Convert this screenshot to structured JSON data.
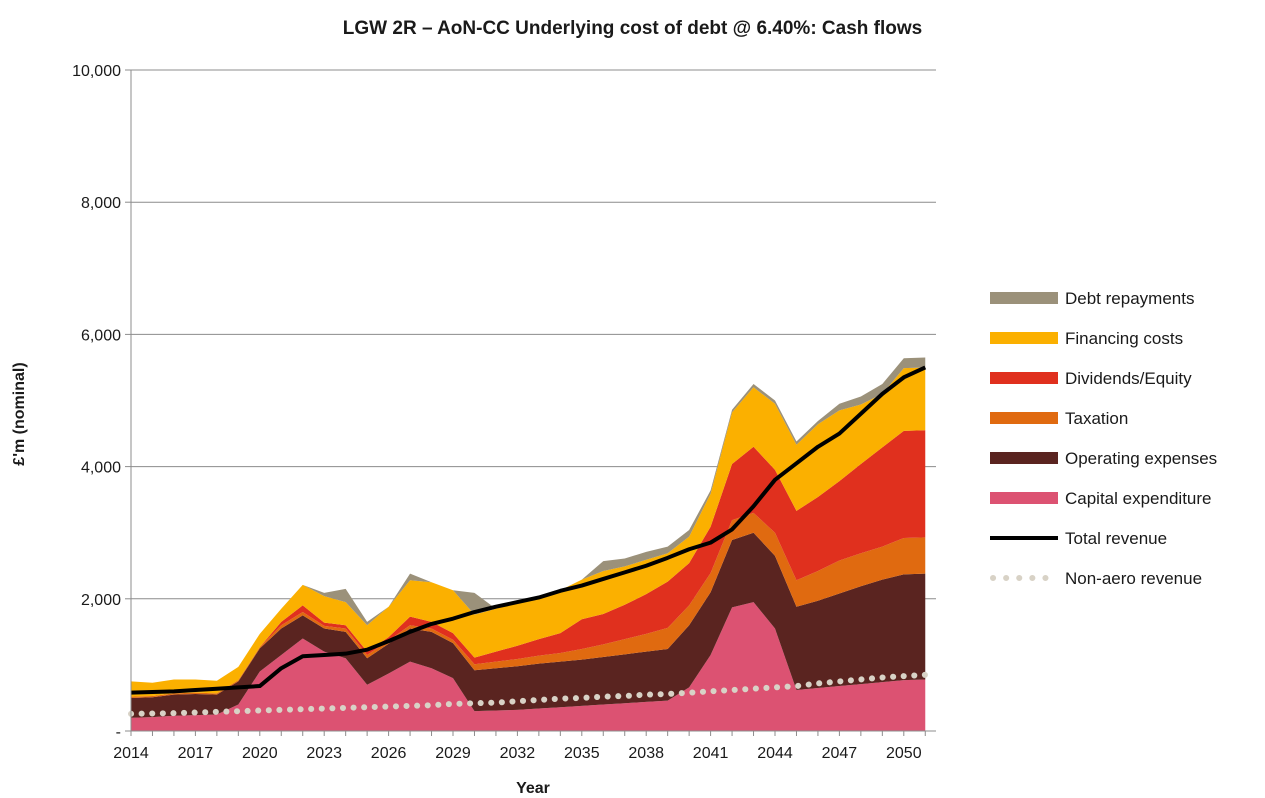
{
  "chart_data": {
    "type": "area",
    "title": "LGW 2R – AoN-CC Underlying cost of debt @ 6.40%: Cash flows",
    "xlabel": "Year",
    "ylabel": "£'m (nominal)",
    "ylim": [
      0,
      10000
    ],
    "yticks": [
      0,
      2000,
      4000,
      6000,
      8000,
      10000
    ],
    "ytick_labels": [
      "-",
      "2,000",
      "4,000",
      "6,000",
      "8,000",
      "10,000"
    ],
    "xtick_labels": [
      "2014",
      "2017",
      "2020",
      "2023",
      "2026",
      "2029",
      "2032",
      "2035",
      "2038",
      "2041",
      "2044",
      "2047",
      "2050"
    ],
    "x": [
      2014,
      2015,
      2016,
      2017,
      2018,
      2019,
      2020,
      2021,
      2022,
      2023,
      2024,
      2025,
      2026,
      2027,
      2028,
      2029,
      2030,
      2031,
      2032,
      2033,
      2034,
      2035,
      2036,
      2037,
      2038,
      2039,
      2040,
      2041,
      2042,
      2043,
      2044,
      2045,
      2046,
      2047,
      2048,
      2049,
      2050,
      2051
    ],
    "grid": true,
    "legend_position": "right",
    "stack_series": [
      {
        "name": "Capital expenditure",
        "color": "#dc5272",
        "values": [
          200,
          210,
          230,
          240,
          250,
          400,
          900,
          1150,
          1400,
          1200,
          1100,
          700,
          870,
          1050,
          950,
          800,
          300,
          310,
          320,
          340,
          360,
          380,
          400,
          420,
          440,
          460,
          660,
          1150,
          1870,
          1950,
          1550,
          620,
          650,
          680,
          710,
          740,
          770,
          780
        ]
      },
      {
        "name": "Operating expenses",
        "color": "#5a2420",
        "values": [
          300,
          300,
          320,
          320,
          300,
          350,
          350,
          400,
          350,
          350,
          400,
          400,
          450,
          500,
          550,
          530,
          620,
          640,
          660,
          680,
          690,
          700,
          720,
          740,
          760,
          780,
          940,
          950,
          1020,
          1050,
          1100,
          1260,
          1320,
          1400,
          1480,
          1550,
          1600,
          1600
        ]
      },
      {
        "name": "Taxation",
        "color": "#e06a10",
        "values": [
          20,
          20,
          20,
          20,
          20,
          20,
          20,
          50,
          50,
          40,
          50,
          50,
          50,
          50,
          50,
          50,
          90,
          100,
          110,
          120,
          130,
          160,
          190,
          230,
          270,
          320,
          300,
          290,
          300,
          300,
          350,
          400,
          450,
          500,
          500,
          500,
          550,
          550
        ]
      },
      {
        "name": "Dividends/Equity",
        "color": "#e0301e",
        "values": [
          0,
          0,
          0,
          0,
          0,
          0,
          0,
          50,
          100,
          50,
          50,
          50,
          50,
          130,
          100,
          100,
          100,
          150,
          200,
          250,
          300,
          450,
          460,
          520,
          600,
          700,
          640,
          700,
          850,
          1000,
          950,
          1050,
          1120,
          1200,
          1350,
          1500,
          1620,
          1620
        ]
      },
      {
        "name": "Financing costs",
        "color": "#fbb000",
        "values": [
          230,
          200,
          210,
          200,
          190,
          200,
          200,
          200,
          310,
          400,
          350,
          400,
          460,
          550,
          600,
          650,
          650,
          650,
          650,
          650,
          650,
          600,
          650,
          580,
          520,
          430,
          400,
          500,
          780,
          900,
          1000,
          1000,
          1100,
          1070,
          900,
          810,
          950,
          950
        ]
      },
      {
        "name": "Debt repayments",
        "color": "#9b917a",
        "values": [
          0,
          0,
          0,
          0,
          0,
          0,
          0,
          0,
          0,
          50,
          200,
          50,
          0,
          100,
          0,
          0,
          330,
          0,
          0,
          0,
          0,
          0,
          150,
          120,
          120,
          100,
          100,
          50,
          40,
          50,
          50,
          50,
          50,
          100,
          120,
          150,
          150,
          150
        ]
      }
    ],
    "line_series": [
      {
        "name": "Total revenue",
        "color": "#000000",
        "style": "solid",
        "values": [
          580,
          590,
          600,
          620,
          640,
          660,
          680,
          950,
          1130,
          1150,
          1170,
          1230,
          1360,
          1500,
          1620,
          1700,
          1800,
          1880,
          1950,
          2020,
          2120,
          2200,
          2300,
          2400,
          2500,
          2620,
          2750,
          2850,
          3050,
          3400,
          3800,
          4050,
          4300,
          4500,
          4800,
          5100,
          5350,
          5500
        ]
      },
      {
        "name": "Non-aero revenue",
        "color": "#d8d2c6",
        "style": "dotted",
        "values": [
          260,
          265,
          270,
          280,
          290,
          300,
          310,
          320,
          330,
          340,
          350,
          360,
          370,
          380,
          390,
          410,
          420,
          430,
          450,
          470,
          490,
          500,
          520,
          530,
          550,
          560,
          580,
          600,
          620,
          640,
          660,
          680,
          720,
          750,
          780,
          810,
          830,
          850
        ]
      }
    ],
    "legend": [
      {
        "label": "Debt repayments",
        "color": "#9b917a",
        "kind": "area"
      },
      {
        "label": "Financing costs",
        "color": "#fbb000",
        "kind": "area"
      },
      {
        "label": "Dividends/Equity",
        "color": "#e0301e",
        "kind": "area"
      },
      {
        "label": "Taxation",
        "color": "#e06a10",
        "kind": "area"
      },
      {
        "label": "Operating expenses",
        "color": "#5a2420",
        "kind": "area"
      },
      {
        "label": "Capital expenditure",
        "color": "#dc5272",
        "kind": "area"
      },
      {
        "label": "Total revenue",
        "color": "#000000",
        "kind": "line"
      },
      {
        "label": "Non-aero revenue",
        "color": "#d8d2c6",
        "kind": "dotted"
      }
    ]
  }
}
